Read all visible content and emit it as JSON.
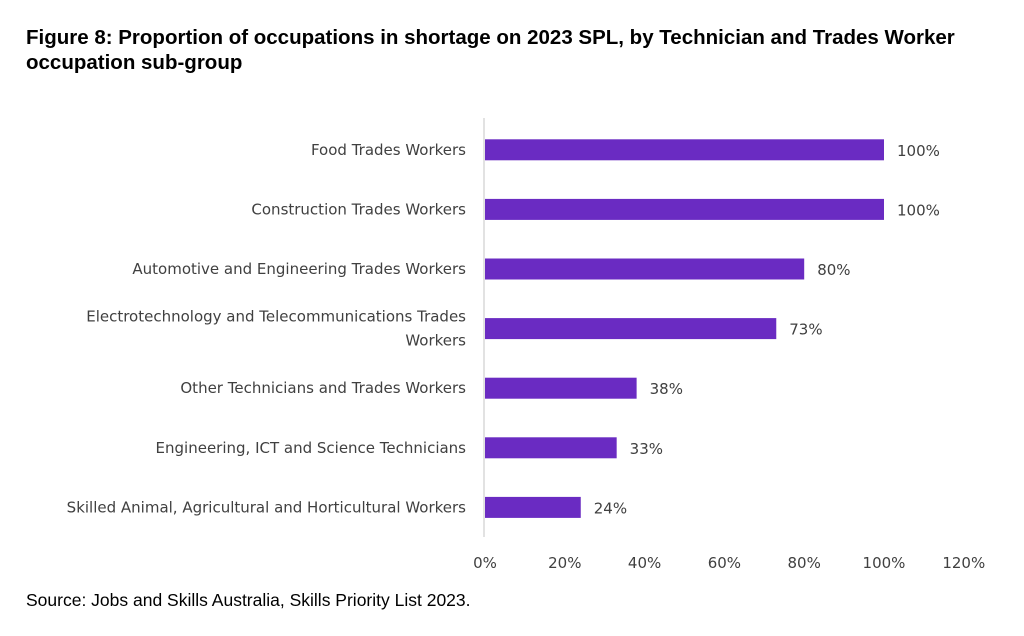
{
  "chart_data": {
    "type": "bar",
    "orientation": "horizontal",
    "title": "Figure 8: Proportion of occupations in shortage on 2023 SPL, by Technician and Trades Worker occupation sub-group",
    "categories": [
      [
        "Food Trades Workers"
      ],
      [
        "Construction Trades Workers"
      ],
      [
        "Automotive and Engineering Trades Workers"
      ],
      [
        "Electrotechnology and Telecommunications Trades",
        "Workers"
      ],
      [
        "Other Technicians and Trades Workers"
      ],
      [
        "Engineering, ICT and Science Technicians"
      ],
      [
        "Skilled Animal, Agricultural and Horticultural Workers"
      ]
    ],
    "values": [
      100,
      100,
      80,
      73,
      38,
      33,
      24
    ],
    "data_labels": [
      "100%",
      "100%",
      "80%",
      "73%",
      "38%",
      "33%",
      "24%"
    ],
    "xlim": [
      0,
      120
    ],
    "xticks": [
      "0%",
      "20%",
      "40%",
      "60%",
      "80%",
      "100%",
      "120%"
    ],
    "xlabel": "",
    "ylabel": "",
    "grid": false,
    "bar_color": "#6A2BC2",
    "source": "Source: Jobs and Skills Australia, Skills Priority List 2023."
  }
}
